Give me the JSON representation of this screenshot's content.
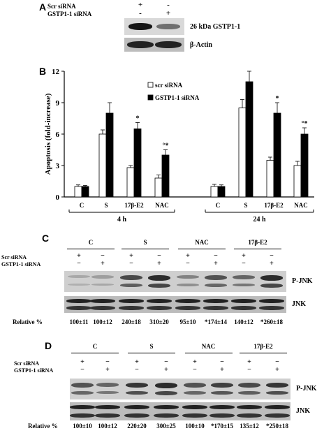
{
  "panelA": {
    "letter": "A",
    "row_labels": [
      "Scr siRNA",
      "GSTP1-1 siRNA"
    ],
    "signs": [
      [
        "+",
        "-"
      ],
      [
        "-",
        "+"
      ]
    ],
    "band_labels": [
      "26 kDa GSTP1-1",
      "β-Actin"
    ],
    "band_intensity": {
      "gstp": [
        0.95,
        0.55
      ],
      "actin": [
        0.9,
        0.9
      ]
    }
  },
  "panelB": {
    "letter": "B"
  },
  "chart_data": {
    "type": "bar",
    "ylabel": "Apoptosis (fold-increase)",
    "ylim": [
      0,
      12
    ],
    "yticks": [
      "0",
      "3",
      "6",
      "9",
      "12"
    ],
    "groups": [
      {
        "label": "4 h",
        "categories": [
          "C",
          "S",
          "17β-E2",
          "NAC"
        ]
      },
      {
        "label": "24 h",
        "categories": [
          "C",
          "S",
          "17β-E2",
          "NAC"
        ]
      }
    ],
    "series": [
      {
        "name": "scr siRNA",
        "color": "#ffffff",
        "values": [
          1.0,
          6.0,
          2.8,
          1.8,
          1.0,
          8.5,
          3.5,
          3.0
        ],
        "errors": [
          0.15,
          0.4,
          0.2,
          0.3,
          0.2,
          0.8,
          0.3,
          0.4
        ]
      },
      {
        "name": "GSTP1-1 siRNA",
        "color": "#000000",
        "values": [
          1.0,
          8.0,
          6.5,
          4.0,
          1.0,
          11.0,
          8.0,
          6.0
        ],
        "errors": [
          0.1,
          1.0,
          0.6,
          0.5,
          0.15,
          1.0,
          1.0,
          0.6
        ]
      }
    ],
    "annotations": [
      {
        "index": 2,
        "series": 1,
        "text": "*"
      },
      {
        "index": 3,
        "series": 1,
        "text": "°*"
      },
      {
        "index": 6,
        "series": 1,
        "text": "*"
      },
      {
        "index": 7,
        "series": 1,
        "text": "°*"
      }
    ],
    "legend": "top-center"
  },
  "panelC": {
    "letter": "C",
    "groups": [
      "C",
      "S",
      "NAC",
      "17β-E2"
    ],
    "row_labels": [
      "Scr siRNA",
      "GSTP1-1 siRNA"
    ],
    "band_labels": [
      "P-JNK",
      "JNK"
    ],
    "relative_label": "Relative %",
    "relative": [
      "100±11",
      "100±12",
      "240±18",
      "310±20",
      "95±10",
      "*174±14",
      "140±12",
      "*260±18"
    ],
    "pjnk_intensity": [
      0.25,
      0.3,
      0.75,
      0.9,
      0.45,
      0.7,
      0.6,
      0.9
    ]
  },
  "panelD": {
    "letter": "D",
    "groups": [
      "C",
      "S",
      "NAC",
      "17β-E2"
    ],
    "row_labels": [
      "Scr siRNA",
      "GSTP1-1 siRNA"
    ],
    "band_labels": [
      "P-JNK",
      "JNK"
    ],
    "relative_label": "Relative %",
    "relative": [
      "100±10",
      "100±12",
      "220±20",
      "300±25",
      "100±10",
      "*170±15",
      "135±12",
      "*250±18"
    ],
    "pjnk_intensity": [
      0.7,
      0.6,
      0.85,
      0.9,
      0.7,
      0.8,
      0.75,
      0.85
    ]
  }
}
